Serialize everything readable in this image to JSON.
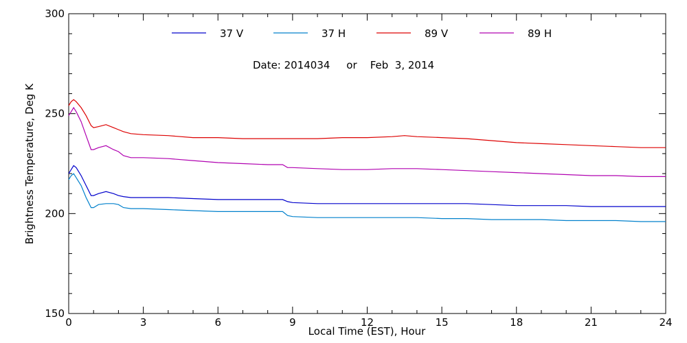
{
  "chart_data": {
    "type": "line",
    "title": "",
    "annotation": "Date: 2014034     or    Feb  3, 2014",
    "xlabel": "Local Time (EST), Hour",
    "ylabel": "Brightness Temperature, Deg K",
    "xlim": [
      0,
      24
    ],
    "ylim": [
      150,
      300
    ],
    "xticks": [
      0,
      3,
      6,
      9,
      12,
      15,
      18,
      21,
      24
    ],
    "yticks": [
      150,
      200,
      250,
      300
    ],
    "grid": false,
    "legend_position": "top",
    "series": [
      {
        "name": "37 V",
        "color": "#0000cc",
        "x": [
          0,
          0.1,
          0.2,
          0.3,
          0.5,
          0.7,
          0.9,
          1.0,
          1.2,
          1.5,
          1.8,
          2.0,
          2.2,
          2.5,
          3,
          4,
          5,
          6,
          7,
          8,
          8.6,
          8.8,
          9,
          10,
          11,
          12,
          13,
          14,
          15,
          16,
          17,
          18,
          19,
          20,
          21,
          22,
          23,
          24
        ],
        "y": [
          220,
          222,
          224,
          223,
          219,
          214,
          209,
          209,
          210,
          211,
          210,
          209,
          208.5,
          208,
          208,
          208,
          207.5,
          207,
          207,
          207,
          207,
          206,
          205.5,
          205,
          205,
          205,
          205,
          205,
          205,
          205,
          204.5,
          204,
          204,
          204,
          203.5,
          203.5,
          203.5,
          203.5
        ]
      },
      {
        "name": "37 H",
        "color": "#0080cc",
        "x": [
          0,
          0.1,
          0.2,
          0.3,
          0.5,
          0.7,
          0.9,
          1.0,
          1.2,
          1.5,
          1.8,
          2.0,
          2.2,
          2.5,
          3,
          4,
          5,
          6,
          7,
          8,
          8.6,
          8.8,
          9,
          10,
          11,
          12,
          13,
          14,
          15,
          16,
          17,
          18,
          19,
          20,
          21,
          22,
          23,
          24
        ],
        "y": [
          217,
          219,
          220,
          218,
          214,
          208,
          203,
          203,
          204.5,
          205,
          205,
          204.5,
          203,
          202.5,
          202.5,
          202,
          201.5,
          201,
          201,
          201,
          201,
          199,
          198.5,
          198,
          198,
          198,
          198,
          198,
          197.5,
          197.5,
          197,
          197,
          197,
          196.5,
          196.5,
          196.5,
          196,
          196
        ]
      },
      {
        "name": "89 V",
        "color": "#dd0000",
        "x": [
          0,
          0.1,
          0.2,
          0.3,
          0.5,
          0.7,
          0.9,
          1.0,
          1.2,
          1.5,
          1.8,
          2.0,
          2.2,
          2.5,
          3,
          4,
          5,
          6,
          7,
          8,
          9,
          10,
          11,
          12,
          13,
          13.5,
          14,
          15,
          16,
          17,
          18,
          19,
          20,
          21,
          22,
          23,
          24
        ],
        "y": [
          254,
          256,
          257,
          256,
          253,
          249,
          244,
          243,
          243.5,
          244.5,
          243,
          242,
          241,
          240,
          239.5,
          239,
          238,
          238,
          237.5,
          237.5,
          237.5,
          237.5,
          238,
          238,
          238.5,
          239,
          238.5,
          238,
          237.5,
          236.5,
          235.5,
          235,
          234.5,
          234,
          233.5,
          233,
          233
        ]
      },
      {
        "name": "89 H",
        "color": "#b000b0",
        "x": [
          0,
          0.1,
          0.2,
          0.3,
          0.5,
          0.7,
          0.9,
          1.0,
          1.2,
          1.5,
          1.8,
          2.0,
          2.2,
          2.5,
          3,
          4,
          5,
          6,
          7,
          8,
          8.6,
          8.8,
          9,
          10,
          11,
          12,
          13,
          14,
          15,
          16,
          17,
          18,
          19,
          20,
          21,
          22,
          23,
          24
        ],
        "y": [
          249,
          251,
          253,
          251,
          246,
          239,
          232,
          232,
          233,
          234,
          232,
          231,
          229,
          228,
          228,
          227.5,
          226.5,
          225.5,
          225,
          224.5,
          224.5,
          223,
          223,
          222.5,
          222,
          222,
          222.5,
          222.5,
          222,
          221.5,
          221,
          220.5,
          220,
          219.5,
          219,
          219,
          218.5,
          218.5
        ]
      }
    ]
  }
}
